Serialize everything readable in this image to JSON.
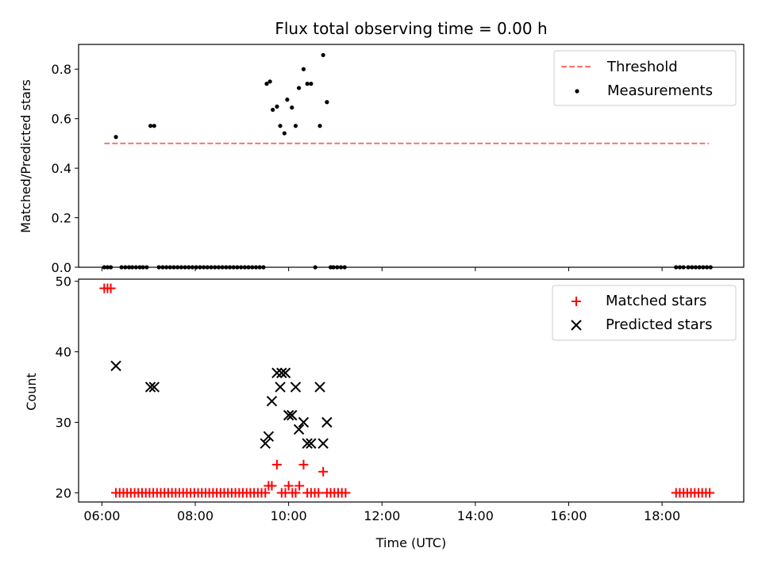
{
  "chart_data": [
    {
      "type": "scatter",
      "title": "Flux total observing time = 0.00 h",
      "ylabel": "Matched/Predicted stars",
      "xlim": [
        5.5,
        19.75
      ],
      "ylim": [
        0,
        0.9
      ],
      "yticks": [
        0.0,
        0.2,
        0.4,
        0.6,
        0.8
      ],
      "ytick_labels": [
        "0.0",
        "0.2",
        "0.4",
        "0.6",
        "0.8"
      ],
      "xticks": [
        6,
        8,
        10,
        12,
        14,
        16,
        18
      ],
      "legend": {
        "position": "top-right",
        "entries": [
          "Threshold",
          "Measurements"
        ]
      },
      "threshold": {
        "name": "Threshold",
        "value": 0.5,
        "x_range": [
          6.05,
          19.0
        ],
        "color": "#ff7070"
      },
      "series": [
        {
          "name": "Measurements",
          "color": "#000000",
          "x": [
            6.05,
            6.12,
            6.19,
            6.3,
            6.42,
            6.5,
            6.58,
            6.65,
            6.73,
            6.81,
            6.88,
            6.96,
            7.04,
            7.12,
            7.22,
            7.3,
            7.38,
            7.46,
            7.54,
            7.62,
            7.7,
            7.78,
            7.86,
            7.94,
            8.02,
            8.1,
            8.18,
            8.26,
            8.34,
            8.42,
            8.5,
            8.58,
            8.66,
            8.74,
            8.82,
            8.9,
            8.98,
            9.06,
            9.14,
            9.22,
            9.3,
            9.38,
            9.46,
            9.53,
            9.6,
            9.66,
            9.75,
            9.82,
            9.91,
            9.97,
            10.07,
            10.15,
            10.22,
            10.32,
            10.4,
            10.48,
            10.57,
            10.67,
            10.74,
            10.82,
            10.9,
            10.96,
            11.04,
            11.12,
            11.2,
            18.3,
            18.38,
            18.46,
            18.56,
            18.64,
            18.72,
            18.8,
            18.88,
            18.96,
            19.04
          ],
          "y": [
            0.0,
            0.0,
            0.0,
            0.526,
            0.0,
            0.0,
            0.0,
            0.0,
            0.0,
            0.0,
            0.0,
            0.0,
            0.571,
            0.571,
            0.0,
            0.0,
            0.0,
            0.0,
            0.0,
            0.0,
            0.0,
            0.0,
            0.0,
            0.0,
            0.0,
            0.0,
            0.0,
            0.0,
            0.0,
            0.0,
            0.0,
            0.0,
            0.0,
            0.0,
            0.0,
            0.0,
            0.0,
            0.0,
            0.0,
            0.0,
            0.0,
            0.0,
            0.0,
            0.741,
            0.75,
            0.636,
            0.649,
            0.571,
            0.541,
            0.677,
            0.645,
            0.571,
            0.724,
            0.8,
            0.741,
            0.741,
            0.0,
            0.571,
            0.857,
            0.667,
            0.0,
            0.0,
            0.0,
            0.0,
            0.0,
            0.0,
            0.0,
            0.0,
            0.0,
            0.0,
            0.0,
            0.0,
            0.0,
            0.0,
            0.0
          ]
        }
      ]
    },
    {
      "type": "scatter",
      "xlabel": "Time (UTC)",
      "ylabel": "Count",
      "xlim": [
        5.5,
        19.75
      ],
      "ylim": [
        18.7,
        50.3
      ],
      "yticks": [
        20,
        30,
        40,
        50
      ],
      "ytick_labels": [
        "20",
        "30",
        "40",
        "50"
      ],
      "xticks": [
        6,
        8,
        10,
        12,
        14,
        16,
        18
      ],
      "xtick_labels": [
        "06:00",
        "08:00",
        "10:00",
        "12:00",
        "14:00",
        "16:00",
        "18:00"
      ],
      "legend": {
        "position": "top-right",
        "entries": [
          "Matched stars",
          "Predicted stars"
        ]
      },
      "series": [
        {
          "name": "Matched stars",
          "marker": "plus",
          "color": "#ff0000",
          "x": [
            6.05,
            6.12,
            6.19,
            6.3,
            6.38,
            6.46,
            6.54,
            6.62,
            6.7,
            6.78,
            6.86,
            6.94,
            7.02,
            7.1,
            7.18,
            7.26,
            7.34,
            7.42,
            7.5,
            7.58,
            7.66,
            7.74,
            7.82,
            7.9,
            7.98,
            8.06,
            8.14,
            8.22,
            8.3,
            8.38,
            8.46,
            8.54,
            8.62,
            8.7,
            8.78,
            8.86,
            8.94,
            9.02,
            9.1,
            9.18,
            9.26,
            9.34,
            9.42,
            9.5,
            9.57,
            9.64,
            9.75,
            9.85,
            9.93,
            10.0,
            10.08,
            10.15,
            10.23,
            10.32,
            10.4,
            10.48,
            10.56,
            10.64,
            10.74,
            10.82,
            10.9,
            10.98,
            11.06,
            11.14,
            11.22,
            18.3,
            18.38,
            18.46,
            18.54,
            18.62,
            18.7,
            18.78,
            18.86,
            18.94,
            19.02
          ],
          "y": [
            49,
            49,
            49,
            20,
            20,
            20,
            20,
            20,
            20,
            20,
            20,
            20,
            20,
            20,
            20,
            20,
            20,
            20,
            20,
            20,
            20,
            20,
            20,
            20,
            20,
            20,
            20,
            20,
            20,
            20,
            20,
            20,
            20,
            20,
            20,
            20,
            20,
            20,
            20,
            20,
            20,
            20,
            20,
            20,
            21,
            21,
            24,
            20,
            20,
            21,
            20,
            20,
            21,
            24,
            20,
            20,
            20,
            20,
            23,
            20,
            20,
            20,
            20,
            20,
            20,
            20,
            20,
            20,
            20,
            20,
            20,
            20,
            20,
            20,
            20
          ]
        },
        {
          "name": "Predicted stars",
          "marker": "x",
          "color": "#000000",
          "x": [
            6.3,
            7.04,
            7.12,
            9.5,
            9.57,
            9.64,
            9.75,
            9.82,
            9.85,
            9.93,
            10.0,
            10.07,
            10.15,
            10.22,
            10.32,
            10.4,
            10.48,
            10.67,
            10.74,
            10.82
          ],
          "y": [
            38,
            35,
            35,
            27,
            28,
            33,
            37,
            35,
            37,
            37,
            31,
            31,
            35,
            29,
            30,
            27,
            27,
            35,
            27,
            30
          ]
        }
      ]
    }
  ]
}
